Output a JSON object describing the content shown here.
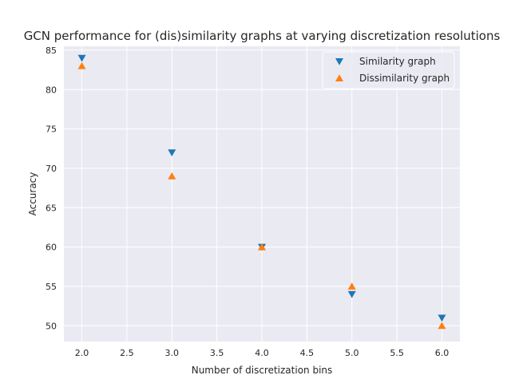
{
  "chart_data": {
    "type": "scatter",
    "title": "GCN performance for (dis)similarity graphs at varying discretization resolutions",
    "xlabel": "Number of discretization bins",
    "ylabel": "Accuracy",
    "xlim": [
      1.8,
      6.2
    ],
    "ylim": [
      48.0,
      85.5
    ],
    "xticks": [
      2.0,
      2.5,
      3.0,
      3.5,
      4.0,
      4.5,
      5.0,
      5.5,
      6.0
    ],
    "xtick_labels": [
      "2.0",
      "2.5",
      "3.0",
      "3.5",
      "4.0",
      "4.5",
      "5.0",
      "5.5",
      "6.0"
    ],
    "yticks": [
      50,
      55,
      60,
      65,
      70,
      75,
      80,
      85
    ],
    "ytick_labels": [
      "50",
      "55",
      "60",
      "65",
      "70",
      "75",
      "80",
      "85"
    ],
    "grid": true,
    "legend_position": "top-right",
    "series": [
      {
        "name": "Similarity graph",
        "marker": "triangle-down",
        "color": "#1f77b4",
        "x": [
          2,
          3,
          4,
          5,
          6
        ],
        "y": [
          84,
          72,
          60,
          54,
          51
        ]
      },
      {
        "name": "Dissimilarity graph",
        "marker": "triangle-up",
        "color": "#ff7f0e",
        "x": [
          2,
          3,
          4,
          5,
          6
        ],
        "y": [
          83,
          69,
          60,
          55,
          50
        ]
      }
    ],
    "plot_background": "#eaeaf2"
  }
}
